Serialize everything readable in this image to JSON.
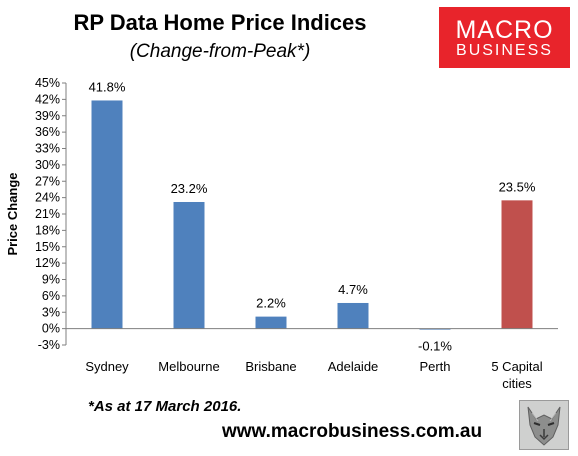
{
  "header": {
    "title": "RP Data Home Price Indices",
    "subtitle": "(Change-from-Peak*)"
  },
  "logo": {
    "line1": "MACRO",
    "line2": "BUSINESS"
  },
  "footer": {
    "note": "*As at 17 March 2016.",
    "website": "www.macrobusiness.com.au"
  },
  "colors": {
    "bar_default": "#4f81bd",
    "bar_highlight": "#c0504d",
    "logo_red": "#e8242b",
    "axis": "#7f7f7f"
  },
  "icons": {
    "wolf": "wolf-head-icon"
  },
  "chart_data": {
    "type": "bar",
    "title": "RP Data Home Price Indices",
    "subtitle": "(Change-from-Peak*)",
    "ylabel": "Price Change",
    "xlabel": "",
    "categories": [
      [
        "Sydney"
      ],
      [
        "Melbourne"
      ],
      [
        "Brisbane"
      ],
      [
        "Adelaide"
      ],
      [
        "Perth"
      ],
      [
        "5 Capital",
        "cities"
      ]
    ],
    "values": [
      41.8,
      23.2,
      2.2,
      4.7,
      -0.1,
      23.5
    ],
    "value_labels": [
      "41.8%",
      "23.2%",
      "2.2%",
      "4.7%",
      "-0.1%",
      "23.5%"
    ],
    "highlight_index": 5,
    "ylim": [
      -3,
      45
    ],
    "yticks": [
      -3,
      0,
      3,
      6,
      9,
      12,
      15,
      18,
      21,
      24,
      27,
      30,
      33,
      36,
      39,
      42,
      45
    ],
    "ytick_labels": [
      "-3%",
      "0%",
      "3%",
      "6%",
      "9%",
      "12%",
      "15%",
      "18%",
      "21%",
      "24%",
      "27%",
      "30%",
      "33%",
      "36%",
      "39%",
      "42%",
      "45%"
    ],
    "grid": false,
    "legend": "none"
  }
}
